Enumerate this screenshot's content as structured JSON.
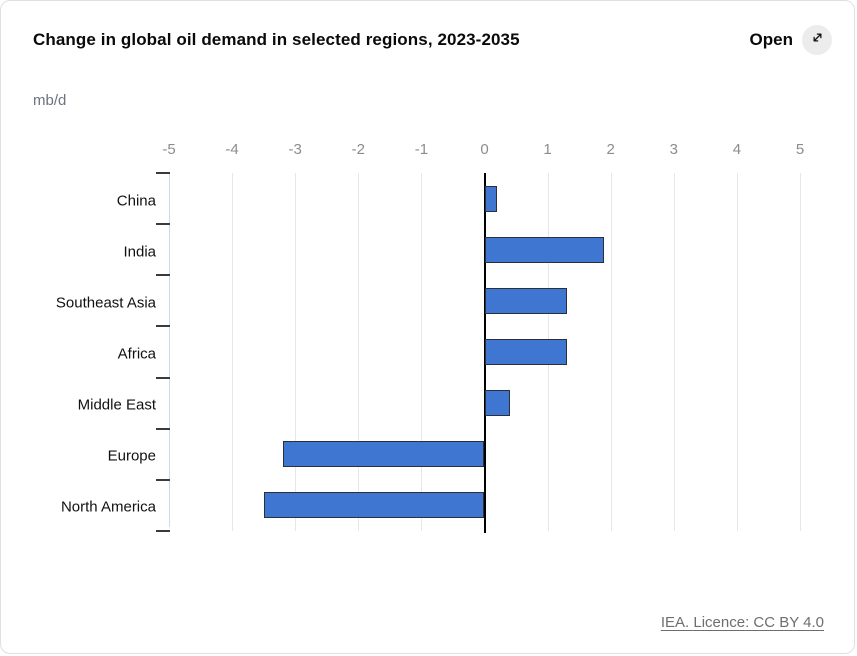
{
  "header": {
    "title": "Change in global oil demand in selected regions, 2023-2035",
    "open_label": "Open"
  },
  "unit_label": "mb/d",
  "footer": {
    "license_text": "IEA. Licence: CC BY 4.0"
  },
  "colors": {
    "bar_fill": "#3e76d2",
    "bar_border": "#2a2f38",
    "zero_line": "#000000",
    "gridline": "#e8e8e8",
    "y_axis_line": "#ccd9ea",
    "tick_label": "#8c8c8c",
    "category_label": "#111111"
  },
  "chart_data": {
    "type": "bar",
    "orientation": "horizontal",
    "title": "Change in global oil demand in selected regions, 2023-2035",
    "xlabel": "mb/d",
    "ylabel": "",
    "xlim": [
      -5,
      5
    ],
    "xticks": [
      -5,
      -4,
      -3,
      -2,
      -1,
      0,
      1,
      2,
      3,
      4,
      5
    ],
    "grid": true,
    "categories": [
      "China",
      "India",
      "Southeast Asia",
      "Africa",
      "Middle East",
      "Europe",
      "North America"
    ],
    "values": [
      0.2,
      1.9,
      1.3,
      1.3,
      0.4,
      -3.2,
      -3.5
    ]
  }
}
